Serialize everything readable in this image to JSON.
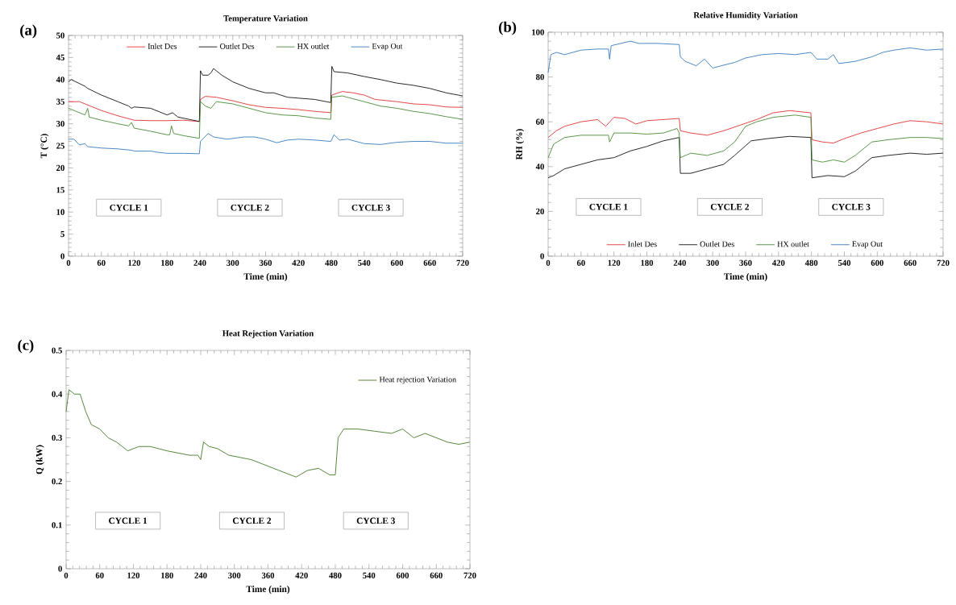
{
  "chart_data": [
    {
      "type": "line",
      "title": "Temperature Variation",
      "xlabel": "Time (min)",
      "ylabel": "T (°C)",
      "xlim": [
        0,
        720
      ],
      "xticks": [
        0,
        60,
        120,
        180,
        240,
        300,
        360,
        420,
        480,
        540,
        600,
        660,
        720
      ],
      "ylim": [
        0,
        50
      ],
      "yticks": [
        0,
        5,
        10,
        15,
        20,
        25,
        30,
        35,
        40,
        45,
        50
      ],
      "legend": "top",
      "annotations": [
        "(a)",
        "CYCLE 1",
        "CYCLE 2",
        "CYCLE 3"
      ],
      "series": [
        {
          "name": "Inlet Des",
          "color": "#e03a3a",
          "x": [
            0,
            20,
            40,
            60,
            90,
            120,
            150,
            180,
            210,
            239,
            241,
            250,
            270,
            300,
            330,
            360,
            390,
            420,
            450,
            479,
            481,
            500,
            520,
            540,
            560,
            600,
            630,
            660,
            690,
            720
          ],
          "values": [
            35,
            35,
            34,
            33,
            31.8,
            30.8,
            30.7,
            30.7,
            30.8,
            30.5,
            35.5,
            36.2,
            36,
            35.2,
            34.3,
            33.7,
            33.5,
            33.2,
            32.8,
            32.5,
            36.5,
            37.3,
            37,
            36.5,
            35.5,
            35,
            34.5,
            34.3,
            33.8,
            33.7
          ]
        },
        {
          "name": "Outlet Des",
          "color": "#1a1a1a",
          "x": [
            0,
            5,
            30,
            35,
            60,
            90,
            110,
            115,
            120,
            150,
            180,
            190,
            200,
            220,
            239,
            241,
            245,
            255,
            260,
            265,
            280,
            300,
            330,
            360,
            375,
            400,
            420,
            450,
            479,
            481,
            485,
            510,
            540,
            570,
            600,
            630,
            660,
            690,
            720
          ],
          "values": [
            39.5,
            40,
            38.5,
            38,
            36.5,
            35,
            34,
            33.5,
            33.8,
            33.5,
            32,
            32.5,
            31.5,
            31,
            30.5,
            42,
            41,
            41,
            41.5,
            42.5,
            41,
            39.5,
            38,
            37,
            37,
            36,
            35.8,
            35.5,
            34.8,
            43,
            41.8,
            41.5,
            40.7,
            40,
            39.2,
            38.7,
            38,
            37,
            36.3
          ]
        },
        {
          "name": "HX outlet",
          "color": "#4e8f3a",
          "x": [
            0,
            20,
            30,
            35,
            38,
            60,
            90,
            110,
            115,
            120,
            150,
            180,
            185,
            188,
            192,
            210,
            239,
            241,
            250,
            260,
            270,
            300,
            330,
            360,
            390,
            420,
            450,
            479,
            481,
            500,
            540,
            570,
            600,
            630,
            660,
            690,
            720
          ],
          "values": [
            33.5,
            32.5,
            32,
            33.5,
            31.5,
            30.8,
            30,
            29.5,
            30.3,
            29,
            28.3,
            27.5,
            27.5,
            29.5,
            27.8,
            27.3,
            26.7,
            35,
            34,
            33.5,
            35,
            34.5,
            33.5,
            32.5,
            32,
            31.8,
            31.3,
            31,
            36,
            36.3,
            35,
            34,
            33.5,
            32.8,
            32.3,
            31.6,
            31
          ]
        },
        {
          "name": "Evap Out",
          "color": "#3f7fbf",
          "x": [
            0,
            10,
            20,
            30,
            35,
            60,
            90,
            115,
            120,
            150,
            165,
            180,
            210,
            239,
            241,
            255,
            265,
            290,
            320,
            340,
            360,
            380,
            400,
            420,
            450,
            479,
            485,
            495,
            510,
            540,
            570,
            600,
            630,
            660,
            690,
            720
          ],
          "values": [
            26.5,
            26.5,
            25.2,
            25.5,
            24.8,
            24.5,
            24.3,
            24,
            23.8,
            23.8,
            23.5,
            23.3,
            23.3,
            23.2,
            26,
            27.8,
            27,
            26.5,
            27,
            27,
            26.5,
            25.7,
            26.3,
            26.5,
            26.3,
            26,
            27.5,
            26.3,
            26.5,
            25.5,
            25.3,
            25.8,
            26,
            26,
            25.6,
            25.6
          ]
        }
      ]
    },
    {
      "type": "line",
      "title": "Relative Humidity Variation",
      "xlabel": "Time (min)",
      "ylabel": "RH (%)",
      "xlim": [
        0,
        720
      ],
      "xticks": [
        0,
        60,
        120,
        180,
        240,
        300,
        360,
        420,
        480,
        540,
        600,
        660,
        720
      ],
      "ylim": [
        0,
        100
      ],
      "yticks": [
        0,
        20,
        40,
        60,
        80,
        100
      ],
      "legend": "bottom",
      "annotations": [
        "(b)",
        "CYCLE 1",
        "CYCLE 2",
        "CYCLE 3"
      ],
      "series": [
        {
          "name": "Inlet Des",
          "color": "#e03a3a",
          "x": [
            0,
            15,
            30,
            60,
            90,
            105,
            120,
            140,
            160,
            180,
            210,
            239,
            241,
            260,
            290,
            320,
            350,
            380,
            410,
            440,
            479,
            481,
            500,
            520,
            540,
            570,
            600,
            630,
            660,
            690,
            720
          ],
          "values": [
            53,
            56,
            58,
            60,
            61,
            58,
            62,
            61.5,
            59,
            60.5,
            61,
            61.5,
            56,
            55,
            54,
            56,
            58.5,
            61,
            64,
            65,
            64,
            52,
            51,
            50.5,
            52.5,
            55,
            57,
            59,
            60.5,
            60,
            59
          ]
        },
        {
          "name": "Outlet Des",
          "color": "#1a1a1a",
          "x": [
            0,
            10,
            30,
            60,
            90,
            120,
            150,
            180,
            210,
            239,
            241,
            260,
            290,
            320,
            340,
            370,
            400,
            440,
            479,
            481,
            510,
            540,
            560,
            590,
            620,
            660,
            690,
            720
          ],
          "values": [
            35,
            36,
            39,
            41,
            43,
            44,
            47,
            49,
            51.5,
            53,
            37,
            37,
            39,
            41,
            45,
            51.5,
            52.5,
            53.5,
            53,
            35,
            36,
            35.5,
            38,
            44,
            45,
            46,
            45.5,
            46
          ]
        },
        {
          "name": "HX outlet",
          "color": "#4e8f3a",
          "x": [
            0,
            10,
            30,
            60,
            90,
            110,
            112,
            120,
            150,
            180,
            210,
            235,
            239,
            241,
            260,
            290,
            320,
            340,
            360,
            380,
            410,
            450,
            479,
            481,
            500,
            520,
            540,
            560,
            590,
            620,
            660,
            690,
            720
          ],
          "values": [
            44,
            50,
            53,
            54,
            54,
            54,
            51,
            55,
            55,
            54.5,
            55,
            57,
            55,
            44,
            46,
            45,
            47,
            51,
            58,
            60,
            62,
            63,
            62,
            43,
            42,
            43,
            42,
            45,
            51,
            52,
            53,
            53,
            52.5
          ]
        },
        {
          "name": "Evap Out",
          "color": "#3f7fbf",
          "x": [
            0,
            5,
            15,
            30,
            60,
            90,
            110,
            112,
            115,
            150,
            165,
            200,
            239,
            241,
            250,
            270,
            285,
            300,
            315,
            340,
            360,
            390,
            420,
            450,
            479,
            490,
            510,
            520,
            530,
            560,
            590,
            610,
            630,
            660,
            690,
            720
          ],
          "values": [
            82,
            90,
            91,
            90,
            92,
            92.5,
            92.5,
            88,
            94,
            96,
            95,
            95,
            94.5,
            89,
            87,
            85,
            88,
            84,
            85,
            86.5,
            88.5,
            90,
            90.5,
            90,
            91,
            88,
            88,
            90,
            86,
            87,
            89,
            91,
            92,
            93,
            92,
            92.5
          ]
        }
      ]
    },
    {
      "type": "line",
      "title": "Heat Rejection Variation",
      "xlabel": "Time (min)",
      "ylabel": "Q (kW)",
      "xlim": [
        0,
        720
      ],
      "xticks": [
        0,
        60,
        120,
        180,
        240,
        300,
        360,
        420,
        480,
        540,
        600,
        660,
        720
      ],
      "ylim": [
        0,
        0.5
      ],
      "yticks": [
        0,
        0.1,
        0.2,
        0.3,
        0.4,
        0.5
      ],
      "legend": "top right",
      "annotations": [
        "(c)",
        "CYCLE 1",
        "CYCLE 2",
        "CYCLE 3"
      ],
      "series": [
        {
          "name": "Heat rejection Variation",
          "color": "#4a7f2c",
          "x": [
            0,
            5,
            15,
            25,
            35,
            45,
            60,
            75,
            90,
            100,
            110,
            130,
            150,
            180,
            200,
            220,
            235,
            240,
            245,
            255,
            270,
            290,
            310,
            330,
            350,
            370,
            390,
            410,
            430,
            450,
            470,
            480,
            485,
            495,
            520,
            550,
            580,
            600,
            620,
            640,
            660,
            680,
            700,
            720
          ],
          "values": [
            0.36,
            0.41,
            0.4,
            0.4,
            0.36,
            0.33,
            0.32,
            0.3,
            0.29,
            0.28,
            0.27,
            0.28,
            0.28,
            0.27,
            0.265,
            0.26,
            0.26,
            0.25,
            0.29,
            0.28,
            0.275,
            0.26,
            0.255,
            0.25,
            0.24,
            0.23,
            0.22,
            0.21,
            0.225,
            0.23,
            0.215,
            0.215,
            0.3,
            0.32,
            0.32,
            0.315,
            0.31,
            0.32,
            0.3,
            0.31,
            0.3,
            0.29,
            0.285,
            0.29
          ]
        }
      ]
    }
  ]
}
